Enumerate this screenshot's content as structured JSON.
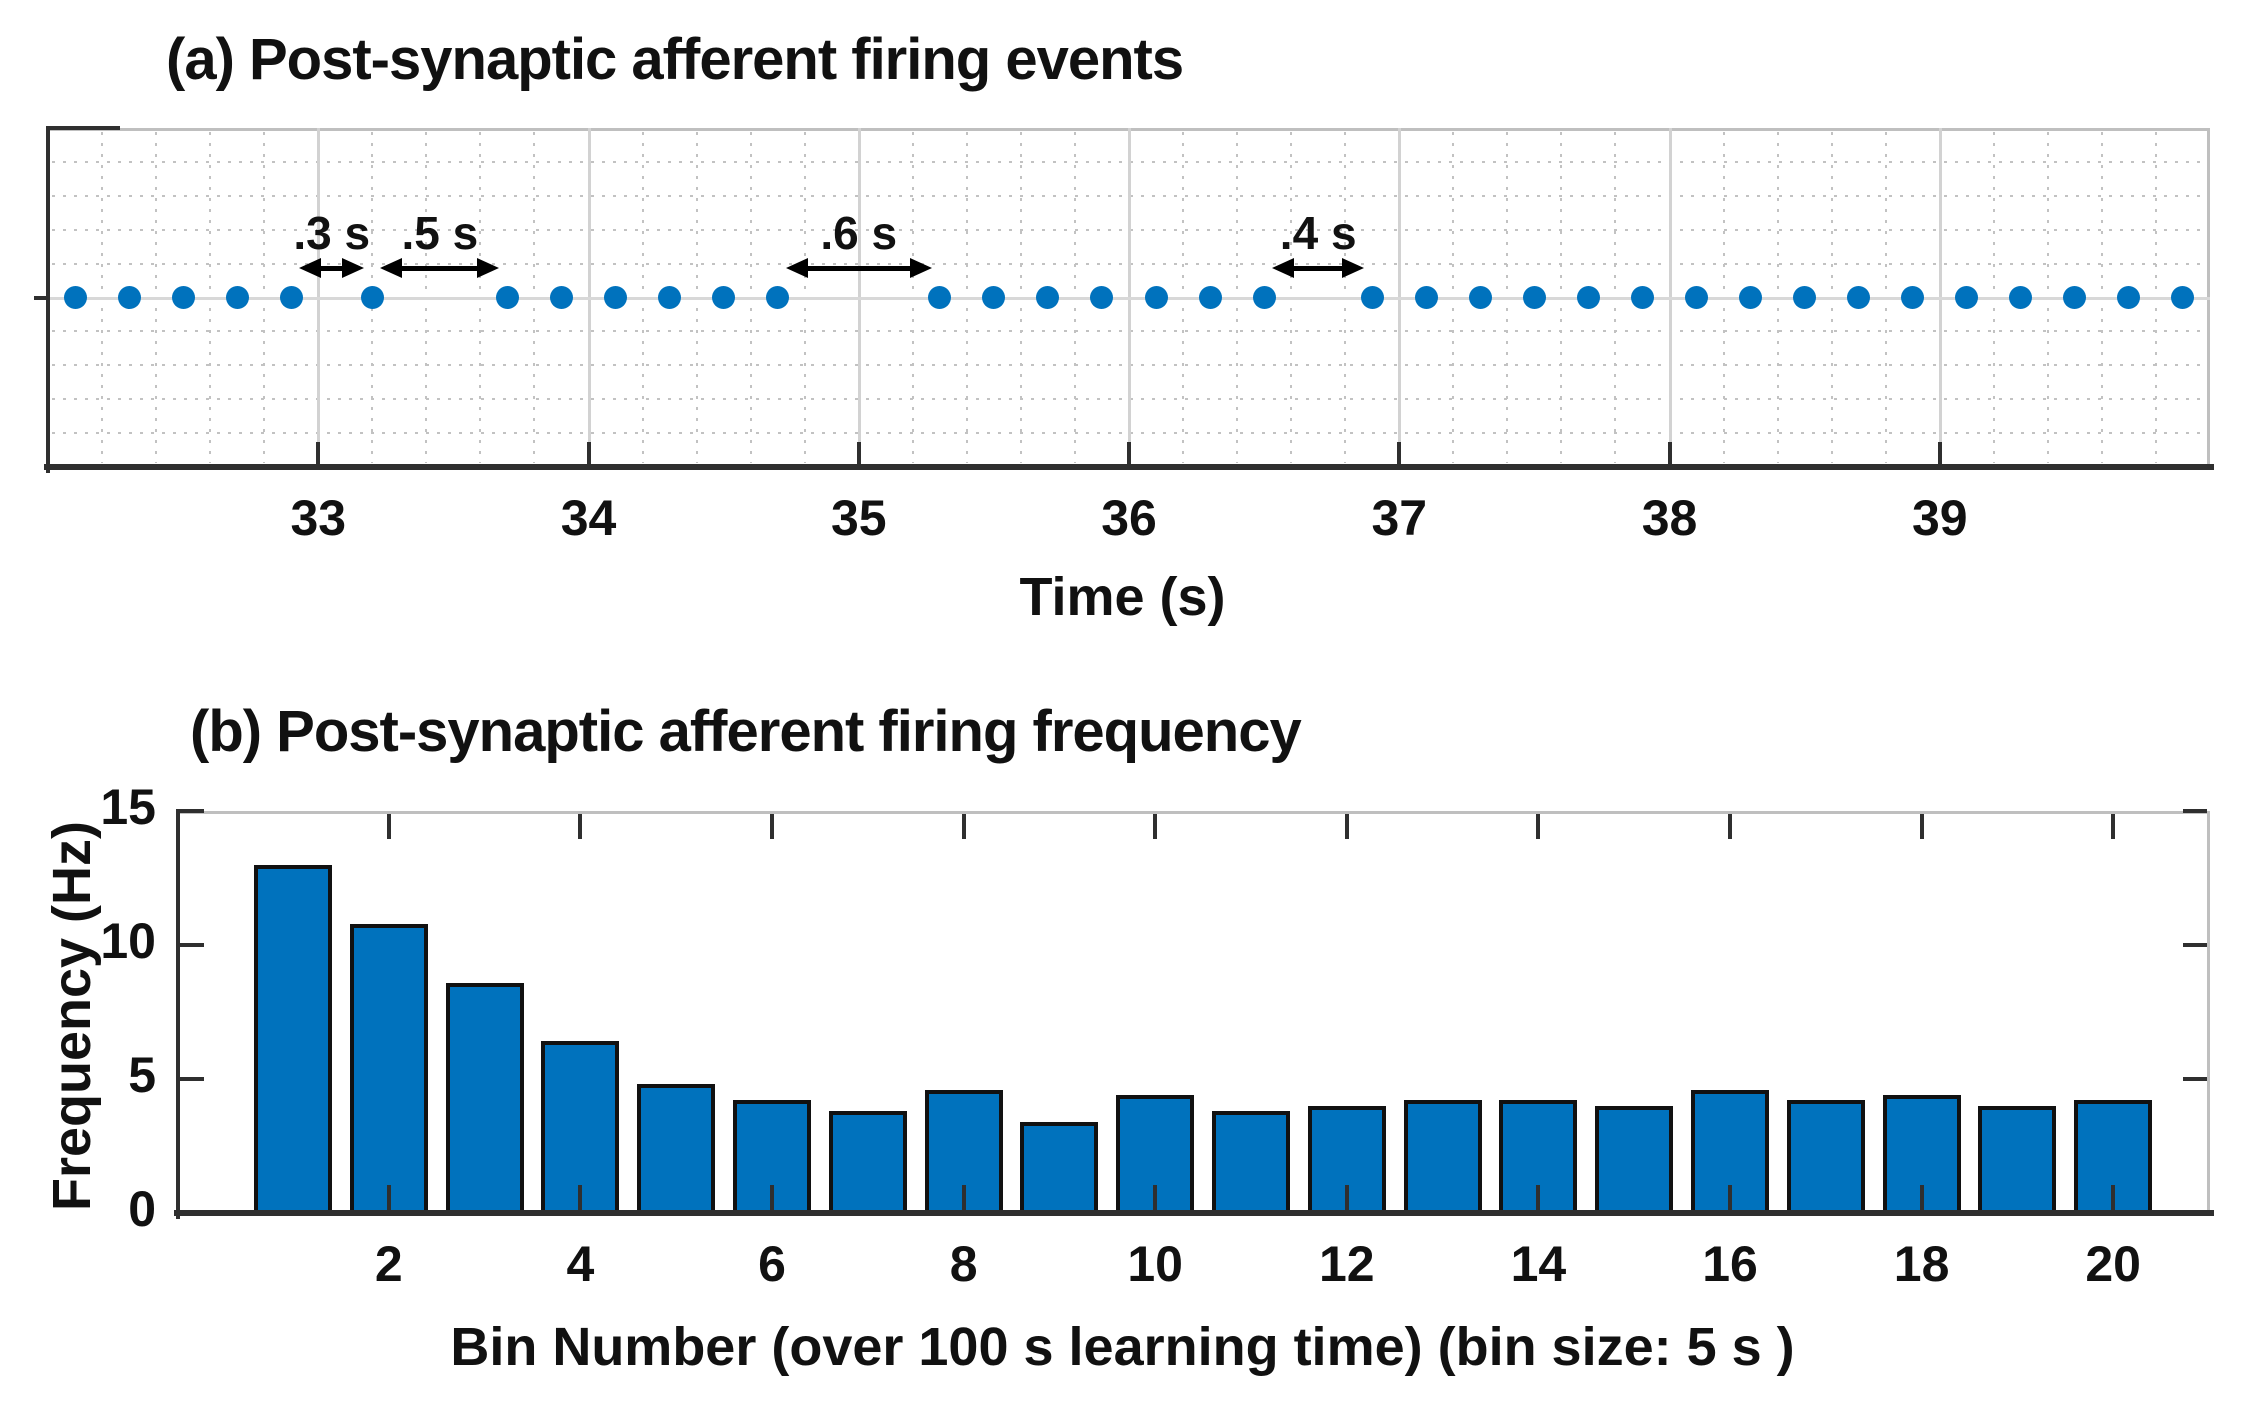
{
  "colors": {
    "marker_blue": "#0072BD",
    "bar_fill": "#0072BD",
    "bar_edge": "#111111",
    "axis_dark": "#2f2f2f",
    "grid_light": "#d2d2d2",
    "text": "#111111"
  },
  "panel_a": {
    "title": "(a) Post-synaptic afferent firing events",
    "xlabel": "Time (s)"
  },
  "panel_b": {
    "title": "(b) Post-synaptic afferent firing frequency",
    "xlabel": "Bin Number (over 100 s learning time) (bin size: 5 s )",
    "ylabel": "Frequency (Hz)"
  },
  "chart_data": [
    {
      "id": "panel_a",
      "type": "scatter",
      "title": "(a) Post-synaptic afferent firing events",
      "xlabel": "Time (s)",
      "marker": "filled-circle",
      "marker_color": "#0072BD",
      "y_value": 0,
      "x": [
        32.1,
        32.3,
        32.5,
        32.7,
        32.9,
        33.2,
        33.7,
        33.9,
        34.1,
        34.3,
        34.5,
        34.7,
        35.3,
        35.5,
        35.7,
        35.9,
        36.1,
        36.3,
        36.5,
        36.9,
        37.1,
        37.3,
        37.5,
        37.7,
        37.9,
        38.1,
        38.3,
        38.5,
        38.7,
        38.9,
        39.1,
        39.3,
        39.5,
        39.7,
        39.9
      ],
      "xlim": [
        32,
        40
      ],
      "x_ticks": [
        33,
        34,
        35,
        36,
        37,
        38,
        39
      ],
      "x_tick_labels": [
        "33",
        "34",
        "35",
        "36",
        "37",
        "38",
        "39"
      ],
      "grid": "major solid vertical lines at whole seconds; dotted minor grid every 0.2 s horizontal and vertical; solid light line along spike row",
      "annotations": [
        {
          "label": ".3 s",
          "from": 32.93,
          "to": 33.17
        },
        {
          "label": ".5 s",
          "from": 33.23,
          "to": 33.67
        },
        {
          "label": ".6 s",
          "from": 34.73,
          "to": 35.27
        },
        {
          "label": ".4 s",
          "from": 36.53,
          "to": 36.87
        }
      ]
    },
    {
      "id": "panel_b",
      "type": "bar",
      "title": "(b) Post-synaptic afferent firing frequency",
      "xlabel": "Bin Number (over 100 s learning time) (bin size: 5 s )",
      "ylabel": "Frequency (Hz)",
      "categories": [
        1,
        2,
        3,
        4,
        5,
        6,
        7,
        8,
        9,
        10,
        11,
        12,
        13,
        14,
        15,
        16,
        17,
        18,
        19,
        20
      ],
      "values": [
        13.0,
        10.8,
        8.6,
        6.4,
        4.8,
        4.2,
        3.8,
        4.6,
        3.4,
        4.4,
        3.8,
        4.0,
        4.2,
        4.2,
        4.0,
        4.6,
        4.2,
        4.4,
        4.0,
        4.2
      ],
      "ylim": [
        0,
        15
      ],
      "y_ticks": [
        0,
        5,
        10,
        15
      ],
      "y_tick_labels": [
        "0",
        "5",
        "10",
        "15"
      ],
      "x_ticks": [
        2,
        4,
        6,
        8,
        10,
        12,
        14,
        16,
        18,
        20
      ],
      "x_tick_labels": [
        "2",
        "4",
        "6",
        "8",
        "10",
        "12",
        "14",
        "16",
        "18",
        "20"
      ],
      "bar_color": "#0072BD",
      "bar_edge_color": "#111111",
      "legend": "none",
      "grid": "off"
    }
  ]
}
